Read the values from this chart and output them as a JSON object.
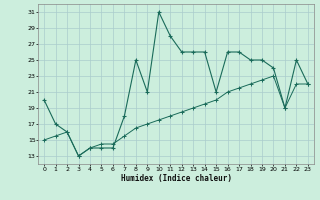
{
  "xlabel": "Humidex (Indice chaleur)",
  "background_color": "#cceedd",
  "line_color": "#1a6b5a",
  "grid_color": "#aacccc",
  "xlim": [
    -0.5,
    23.5
  ],
  "ylim": [
    12,
    32
  ],
  "xticks": [
    0,
    1,
    2,
    3,
    4,
    5,
    6,
    7,
    8,
    9,
    10,
    11,
    12,
    13,
    14,
    15,
    16,
    17,
    18,
    19,
    20,
    21,
    22,
    23
  ],
  "yticks": [
    13,
    15,
    17,
    19,
    21,
    23,
    25,
    27,
    29,
    31
  ],
  "curve1_x": [
    0,
    1,
    2,
    3,
    4,
    5,
    6,
    7,
    8,
    9,
    10,
    11,
    12,
    13,
    14,
    15,
    16,
    17,
    18,
    19,
    20,
    21,
    22,
    23
  ],
  "curve1_y": [
    20,
    17,
    16,
    13,
    14,
    14,
    14,
    18,
    25,
    21,
    31,
    28,
    26,
    26,
    26,
    21,
    26,
    26,
    25,
    25,
    24,
    19,
    25,
    22
  ],
  "curve2_x": [
    0,
    1,
    2,
    3,
    4,
    5,
    6,
    7,
    8,
    9,
    10,
    11,
    12,
    13,
    14,
    15,
    16,
    17,
    18,
    19,
    20,
    21,
    22,
    23
  ],
  "curve2_y": [
    15,
    15.5,
    16,
    13,
    14,
    14.5,
    14.5,
    15.5,
    16.5,
    17,
    17.5,
    18,
    18.5,
    19,
    19.5,
    20,
    21,
    21.5,
    22,
    22.5,
    23,
    19,
    22,
    22
  ]
}
